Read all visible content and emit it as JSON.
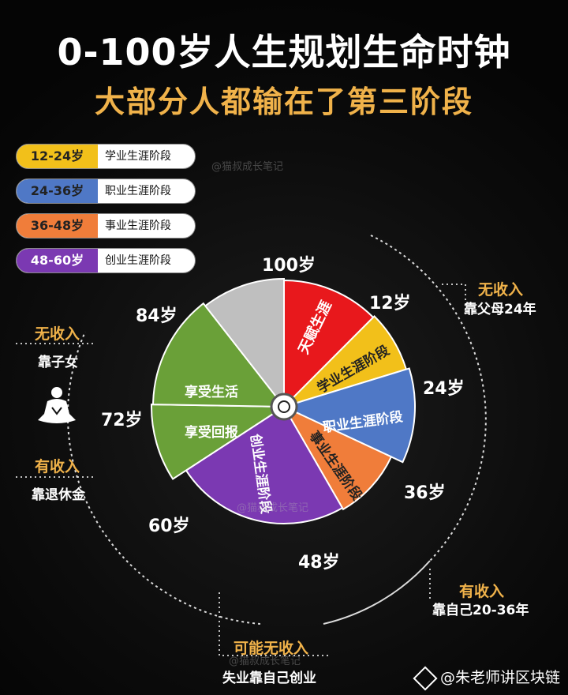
{
  "title": "0-100岁人生规划生命时钟",
  "subtitle": "大部分人都输在了第三阶段",
  "legend": [
    {
      "range": "12-24岁",
      "label": "学业生涯阶段",
      "color": "#f2c01a"
    },
    {
      "range": "24-36岁",
      "label": "职业生涯阶段",
      "color": "#4f78c6"
    },
    {
      "range": "36-48岁",
      "label": "事业生涯阶段",
      "color": "#f07d3a"
    },
    {
      "range": "48-60岁",
      "label": "创业生涯阶段",
      "color": "#7b39b2"
    }
  ],
  "ages": {
    "a100": "100岁",
    "a12": "12岁",
    "a24": "24岁",
    "a36": "36岁",
    "a48": "48岁",
    "a60": "60岁",
    "a72": "72岁",
    "a84": "84岁"
  },
  "segments": {
    "s0": "天赋生涯",
    "s1": "学业生涯阶段",
    "s2": "职业生涯阶段",
    "s3": "事业生涯阶段",
    "s4": "创业生涯阶段",
    "s5": "享受回报",
    "s6": "享受生活"
  },
  "segment_colors": {
    "red": "#e8181c",
    "yellow": "#f2c01a",
    "blue": "#4f78c6",
    "orange": "#f07d3a",
    "purple": "#7b39b2",
    "green": "#6aa038",
    "gray": "#bfbfbf"
  },
  "notes": {
    "right_top_title": "无收入",
    "right_top_text": "靠父母24年",
    "left_top_title": "无收入",
    "left_top_text": "靠子女",
    "left_bottom_title": "有收入",
    "left_bottom_text": "靠退休金",
    "right_bottom_title": "有收入",
    "right_bottom_text": "靠自己20-36年",
    "bottom_title": "可能无收入",
    "bottom_text": "失业靠自己创业"
  },
  "watermark": "@猫叔成长笔记",
  "footer": "@朱老师讲区块链"
}
